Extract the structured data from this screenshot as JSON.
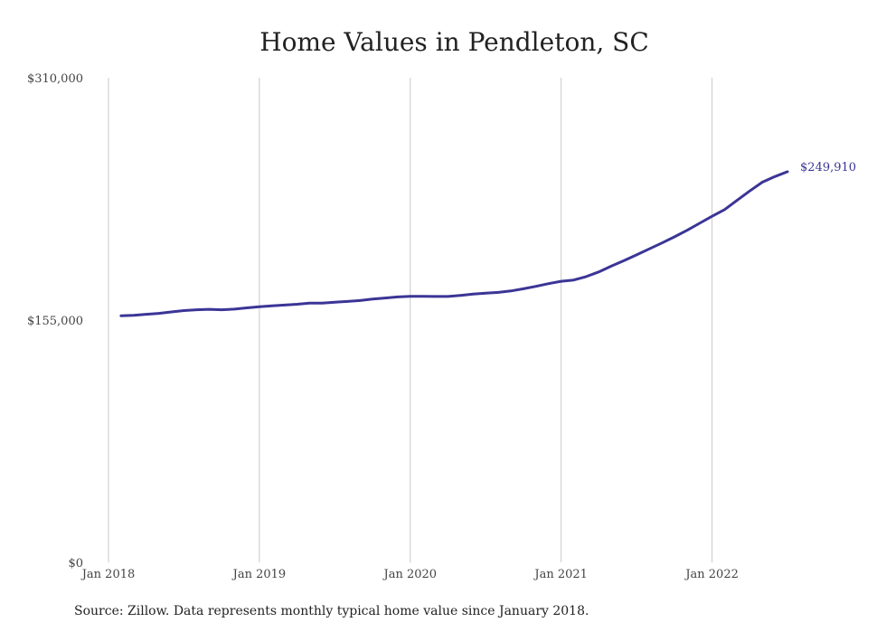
{
  "chart_data": {
    "type": "line",
    "title": "Home Values in Pendleton, SC",
    "xlabel": "",
    "ylabel": "",
    "ylim": [
      0,
      310000
    ],
    "xlim": [
      "2018-01",
      "2022-07"
    ],
    "grid": "vertical",
    "y_ticks": [
      "$310,000",
      "$155,000",
      "$0"
    ],
    "y_tick_values": [
      310000,
      155000,
      0
    ],
    "x_ticks": [
      "Jan 2018",
      "Jan 2019",
      "Jan 2020",
      "Jan 2021",
      "Jan 2022"
    ],
    "x_tick_values": [
      "2018-01",
      "2019-01",
      "2020-01",
      "2021-01",
      "2022-01"
    ],
    "series": [
      {
        "color": "#3b3596",
        "points": [
          {
            "x": "2018-02",
            "y": 157800
          },
          {
            "x": "2018-03",
            "y": 158000
          },
          {
            "x": "2018-04",
            "y": 158700
          },
          {
            "x": "2018-05",
            "y": 159300
          },
          {
            "x": "2018-06",
            "y": 160200
          },
          {
            "x": "2018-07",
            "y": 161100
          },
          {
            "x": "2018-08",
            "y": 161600
          },
          {
            "x": "2018-09",
            "y": 161900
          },
          {
            "x": "2018-10",
            "y": 161600
          },
          {
            "x": "2018-11",
            "y": 162000
          },
          {
            "x": "2018-12",
            "y": 162800
          },
          {
            "x": "2019-01",
            "y": 163500
          },
          {
            "x": "2019-02",
            "y": 164100
          },
          {
            "x": "2019-03",
            "y": 164600
          },
          {
            "x": "2019-04",
            "y": 165100
          },
          {
            "x": "2019-05",
            "y": 165900
          },
          {
            "x": "2019-06",
            "y": 165900
          },
          {
            "x": "2019-07",
            "y": 166400
          },
          {
            "x": "2019-08",
            "y": 166900
          },
          {
            "x": "2019-09",
            "y": 167500
          },
          {
            "x": "2019-10",
            "y": 168500
          },
          {
            "x": "2019-11",
            "y": 169100
          },
          {
            "x": "2019-12",
            "y": 169800
          },
          {
            "x": "2020-01",
            "y": 170200
          },
          {
            "x": "2020-02",
            "y": 170200
          },
          {
            "x": "2020-03",
            "y": 170100
          },
          {
            "x": "2020-04",
            "y": 170100
          },
          {
            "x": "2020-05",
            "y": 170800
          },
          {
            "x": "2020-06",
            "y": 171600
          },
          {
            "x": "2020-07",
            "y": 172200
          },
          {
            "x": "2020-08",
            "y": 172700
          },
          {
            "x": "2020-09",
            "y": 173600
          },
          {
            "x": "2020-10",
            "y": 175000
          },
          {
            "x": "2020-11",
            "y": 176600
          },
          {
            "x": "2020-12",
            "y": 178300
          },
          {
            "x": "2021-01",
            "y": 179800
          },
          {
            "x": "2021-02",
            "y": 180600
          },
          {
            "x": "2021-03",
            "y": 182800
          },
          {
            "x": "2021-04",
            "y": 185800
          },
          {
            "x": "2021-05",
            "y": 189500
          },
          {
            "x": "2021-06",
            "y": 193000
          },
          {
            "x": "2021-07",
            "y": 196700
          },
          {
            "x": "2021-08",
            "y": 200500
          },
          {
            "x": "2021-09",
            "y": 204300
          },
          {
            "x": "2021-10",
            "y": 208200
          },
          {
            "x": "2021-11",
            "y": 212400
          },
          {
            "x": "2021-12",
            "y": 216900
          },
          {
            "x": "2022-01",
            "y": 221400
          },
          {
            "x": "2022-02",
            "y": 225700
          },
          {
            "x": "2022-03",
            "y": 231700
          },
          {
            "x": "2022-04",
            "y": 237600
          },
          {
            "x": "2022-05",
            "y": 243200
          },
          {
            "x": "2022-06",
            "y": 246800
          },
          {
            "x": "2022-07",
            "y": 249910
          }
        ]
      }
    ],
    "end_label": "$249,910",
    "source": "Source: Zillow. Data represents monthly typical home value since January 2018."
  }
}
